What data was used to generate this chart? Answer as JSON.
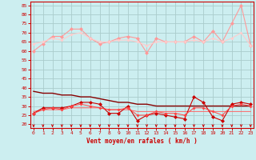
{
  "x": [
    0,
    1,
    2,
    3,
    4,
    5,
    6,
    7,
    8,
    9,
    10,
    11,
    12,
    13,
    14,
    15,
    16,
    17,
    18,
    19,
    20,
    21,
    22,
    23
  ],
  "line_rafales_pink": [
    60,
    64,
    68,
    68,
    72,
    72,
    67,
    64,
    65,
    67,
    68,
    67,
    59,
    67,
    65,
    65,
    65,
    68,
    65,
    71,
    65,
    75,
    85,
    63
  ],
  "line_rafales_light": [
    64,
    65,
    67,
    66,
    69,
    70,
    67,
    65,
    65,
    66,
    66,
    65,
    63,
    65,
    65,
    65,
    65,
    66,
    65,
    67,
    65,
    67,
    70,
    63
  ],
  "line_moyen_dark": [
    26,
    29,
    29,
    29,
    30,
    32,
    32,
    31,
    26,
    26,
    30,
    22,
    25,
    26,
    25,
    24,
    23,
    35,
    32,
    24,
    22,
    31,
    32,
    31
  ],
  "line_moyen_med": [
    26,
    28,
    29,
    28,
    30,
    31,
    30,
    29,
    28,
    28,
    29,
    25,
    25,
    27,
    26,
    26,
    25,
    29,
    29,
    27,
    25,
    30,
    31,
    30
  ],
  "line_moyen_smooth": [
    38,
    37,
    37,
    36,
    36,
    35,
    35,
    34,
    33,
    32,
    32,
    31,
    31,
    30,
    30,
    30,
    30,
    30,
    30,
    30,
    30,
    30,
    30,
    30
  ],
  "line_moyen_smooth2": [
    27,
    28,
    28,
    28,
    29,
    29,
    29,
    29,
    28,
    28,
    28,
    27,
    27,
    27,
    27,
    27,
    27,
    27,
    27,
    27,
    27,
    27,
    27,
    27
  ],
  "ylim": [
    18,
    87
  ],
  "yticks": [
    20,
    25,
    30,
    35,
    40,
    45,
    50,
    55,
    60,
    65,
    70,
    75,
    80,
    85
  ],
  "xlabel": "Vent moyen/en rafales ( km/h )",
  "bg_color": "#cceef0",
  "grid_color": "#aacccc",
  "line_color_pink": "#ff9999",
  "line_color_light": "#ffcccc",
  "line_color_dark": "#cc0000",
  "line_color_med": "#ff4444",
  "line_color_smooth": "#880000",
  "line_color_smooth2": "#ff6666"
}
